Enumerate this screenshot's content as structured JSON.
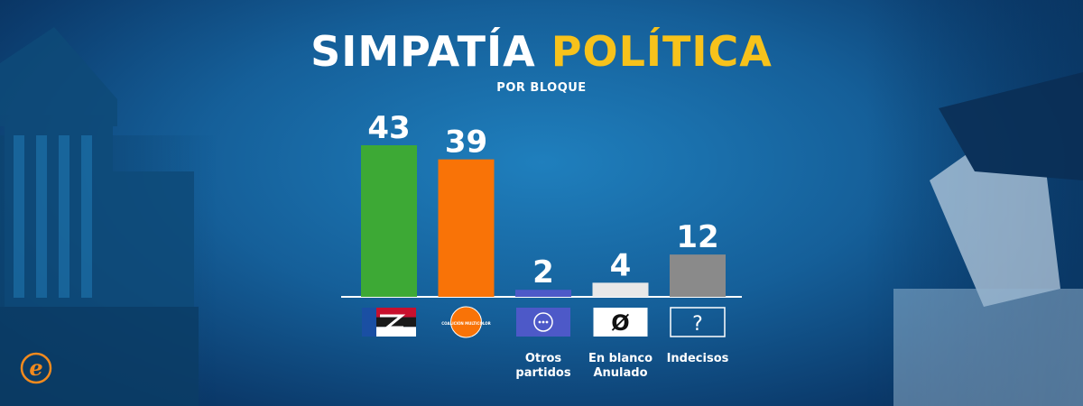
{
  "header": {
    "title_part1": "SIMPATÍA",
    "title_part2": "POLÍTICA",
    "subtitle": "POR BLOQUE"
  },
  "colors": {
    "title_accent": "#f7c21b",
    "background": "#155f99"
  },
  "chart_data": {
    "type": "bar",
    "categories": [
      "Frente Amplio",
      "Coalición Multicolor",
      "Otros partidos",
      "En blanco Anulado",
      "Indecisos"
    ],
    "values": [
      43,
      39,
      2,
      4,
      12
    ],
    "category_labels": [
      "",
      "",
      "Otros\npartidos",
      "En blanco\nAnulado",
      "Indecisos"
    ],
    "data_labels": [
      "43",
      "39",
      "2",
      "4",
      "12"
    ],
    "colors": [
      "#3da935",
      "#f97307",
      "#4d59c8",
      "#e8e8e8",
      "#8a8a8a"
    ],
    "icons": [
      "frente-amplio-flag-icon",
      "coalicion-multicolor-logo-icon",
      "otros-partidos-icon",
      "blank-vote-icon",
      "undecided-icon"
    ],
    "icon_texts": [
      "",
      "COALICIÓN MULTICOLOR",
      "···",
      "Ø",
      "?"
    ],
    "ylim": [
      0,
      45
    ],
    "grid": false,
    "legend": "none"
  }
}
